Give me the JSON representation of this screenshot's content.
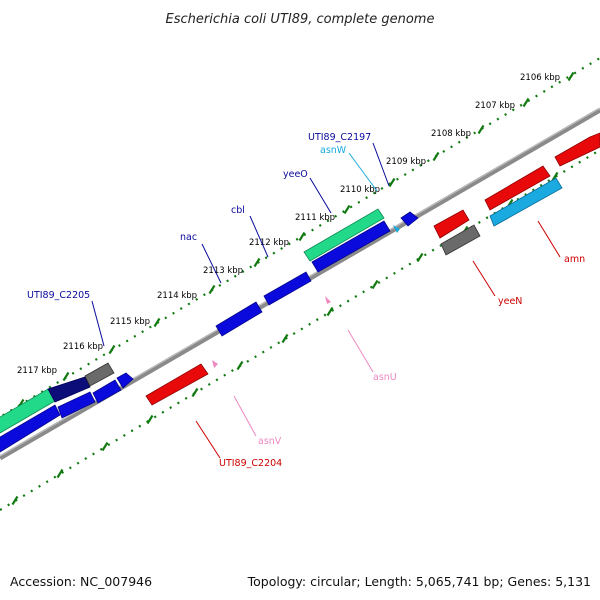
{
  "title": "Escherichia coli UTI89, complete genome",
  "footer": {
    "accession": "Accession: NC_007946",
    "topology": "Topology: circular; Length: 5,065,741 bp; Genes: 5,131"
  },
  "colors": {
    "backbone": "#8a8a8a",
    "ticks": "#117a11",
    "blue_gene": "#0a0adc",
    "navy_gene": "#0d0d7a",
    "green_gene": "#22d98a",
    "gray_gene": "#6a6a6a",
    "red_gene": "#e80a0a",
    "cyan_gene": "#1aaadf",
    "pink_gene": "#ee88c0"
  },
  "ticks": [
    {
      "label": "2106 kbp"
    },
    {
      "label": "2107 kbp"
    },
    {
      "label": "2108 kbp"
    },
    {
      "label": "2109 kbp"
    },
    {
      "label": "2110 kbp"
    },
    {
      "label": "2111 kbp"
    },
    {
      "label": "2112 kbp"
    },
    {
      "label": "2113 kbp"
    },
    {
      "label": "2114 kbp"
    },
    {
      "label": "2115 kbp"
    },
    {
      "label": "2116 kbp"
    },
    {
      "label": "2117 kbp"
    }
  ],
  "gene_labels": [
    {
      "name": "UTI89_C2197",
      "color": "#0a0a9c"
    },
    {
      "name": "asnW",
      "color": "#1aaadf"
    },
    {
      "name": "yeeO",
      "color": "#0a0a9c"
    },
    {
      "name": "cbl",
      "color": "#0a0a9c"
    },
    {
      "name": "nac",
      "color": "#0a0a9c"
    },
    {
      "name": "UTI89_C2205",
      "color": "#0a0a9c"
    },
    {
      "name": "amn",
      "color": "#cc0000"
    },
    {
      "name": "yeeN",
      "color": "#cc0000"
    },
    {
      "name": "asnU",
      "color": "#ee88c0"
    },
    {
      "name": "asnV",
      "color": "#ee88c0"
    },
    {
      "name": "UTI89_C2204",
      "color": "#cc0000"
    }
  ]
}
